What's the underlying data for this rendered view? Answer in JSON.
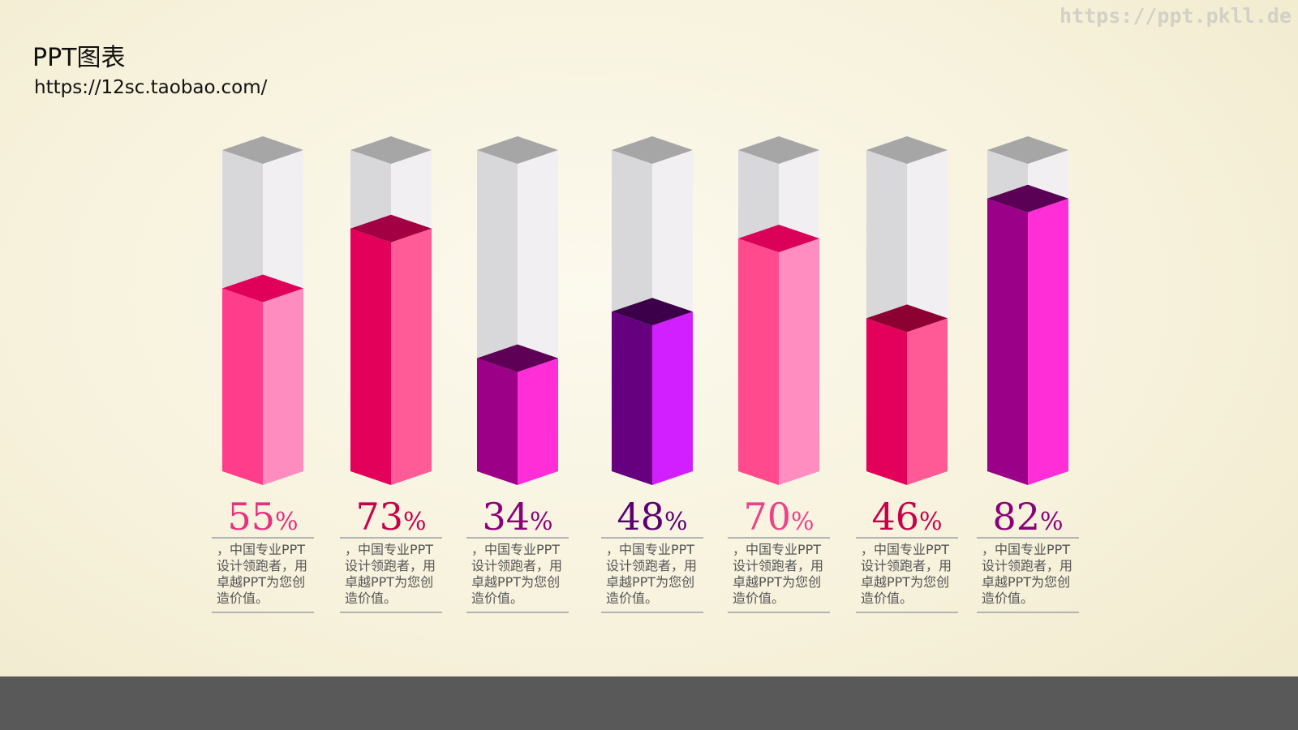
{
  "header": {
    "title": "PPT图表",
    "subtitle": "https://12sc.taobao.com/"
  },
  "watermark": "https://ppt.pkll.de",
  "chart_data": {
    "type": "bar",
    "title": "",
    "xlabel": "",
    "ylabel": "",
    "ylim": [
      0,
      100
    ],
    "grid": false,
    "legend": "none",
    "categories": [
      "",
      "",
      "",
      "",
      "",
      "",
      ""
    ],
    "values": [
      55,
      73,
      34,
      48,
      70,
      46,
      82
    ],
    "percent_suffix": "%",
    "descriptions": [
      "，中国专业PPT设计领跑者，用卓越PPT为您创造价值。",
      "，中国专业PPT设计领跑者，用卓越PPT为您创造价值。",
      "，中国专业PPT设计领跑者，用卓越PPT为您创造价值。",
      "，中国专业PPT设计领跑者，用卓越PPT为您创造价值。",
      "，中国专业PPT设计领跑者，用卓越PPT为您创造价值。",
      "，中国专业PPT设计领跑者，用卓越PPT为您创造价值。",
      "，中国专业PPT设计领跑者，用卓越PPT为您创造价值。"
    ],
    "colors": [
      {
        "left": "#ff3d8b",
        "right": "#ff8cbf",
        "top": "#e0005a",
        "label": "#e6307f"
      },
      {
        "left": "#e3005a",
        "right": "#ff5c97",
        "top": "#a30043",
        "label": "#c8004a"
      },
      {
        "left": "#9b0087",
        "right": "#ff2ed6",
        "top": "#5d0056",
        "label": "#8a0078"
      },
      {
        "left": "#67007f",
        "right": "#d21fff",
        "top": "#3b0049",
        "label": "#5a0070"
      },
      {
        "left": "#ff4a8d",
        "right": "#ff8dbf",
        "top": "#db0058",
        "label": "#f0408a"
      },
      {
        "left": "#e3005a",
        "right": "#ff5a96",
        "top": "#8c0032",
        "label": "#c8004a"
      },
      {
        "left": "#9b0088",
        "right": "#ff2ed6",
        "top": "#5a0055",
        "label": "#8a0078"
      }
    ],
    "container_colors": {
      "left": "#d8d7da",
      "right": "#f1eff1",
      "top": "#a7a6a6"
    }
  }
}
